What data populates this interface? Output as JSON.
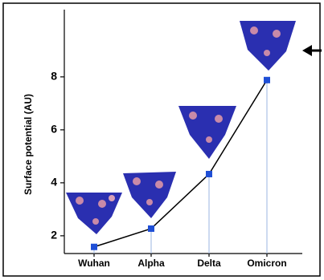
{
  "chart_data": {
    "type": "line",
    "y_label": "Surface potential (AU)",
    "categories": [
      "Wuhan",
      "Alpha",
      "Delta",
      "Omicron"
    ],
    "values": [
      1.58,
      2.27,
      4.33,
      7.88
    ],
    "color": "#000000",
    "marker_color": "#1f4fd6",
    "drop_color": "#9bb6e0",
    "ylim": [
      1.33,
      10.6
    ],
    "yticks": [
      2,
      4,
      6,
      8
    ]
  }
}
